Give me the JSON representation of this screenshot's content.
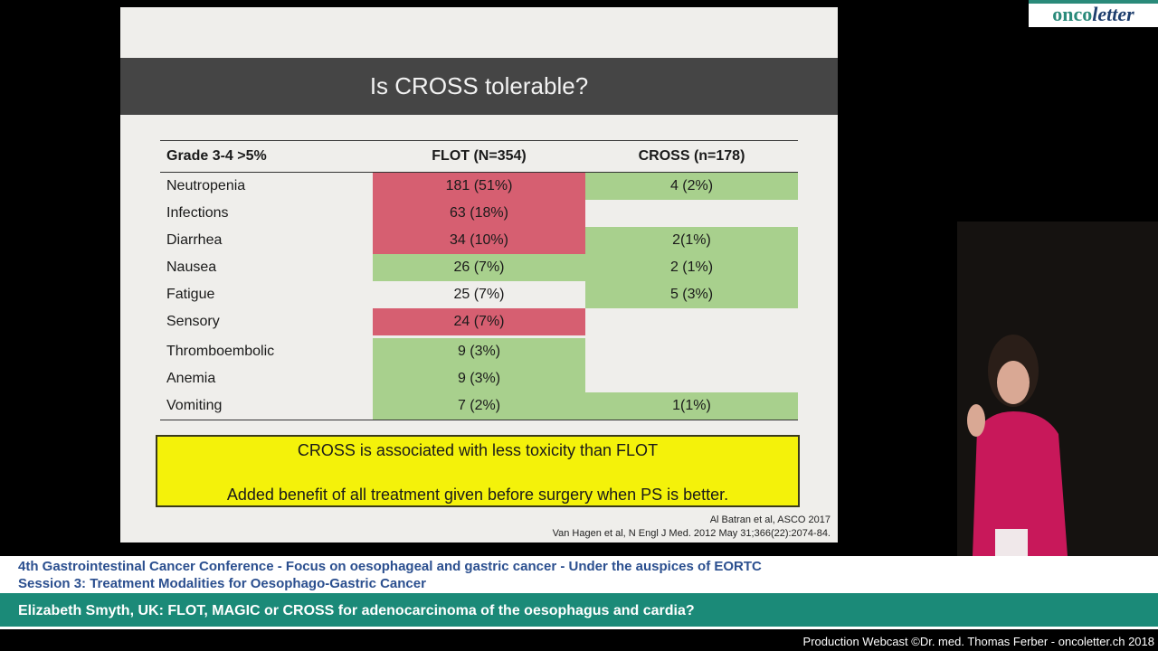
{
  "logo": {
    "part1": "onco",
    "part2": "letter"
  },
  "slide": {
    "title": "Is CROSS tolerable?",
    "table": {
      "headers": [
        "Grade 3-4 >5%",
        "FLOT (N=354)",
        "CROSS (n=178)"
      ],
      "rows": [
        {
          "label": "Neutropenia",
          "flot": "181 (51%)",
          "cross": "4 (2%)",
          "flot_color": "red",
          "cross_color": "green"
        },
        {
          "label": "Infections",
          "flot": "63 (18%)",
          "cross": "",
          "flot_color": "red",
          "cross_color": "none"
        },
        {
          "label": "Diarrhea",
          "flot": "34 (10%)",
          "cross": "2(1%)",
          "flot_color": "red",
          "cross_color": "green"
        },
        {
          "label": "Nausea",
          "flot": "26 (7%)",
          "cross": "2 (1%)",
          "flot_color": "green",
          "cross_color": "green"
        },
        {
          "label": "Fatigue",
          "flot": "25 (7%)",
          "cross": "5 (3%)",
          "flot_color": "none",
          "cross_color": "green"
        },
        {
          "label": "Sensory",
          "flot": "24 (7%)",
          "cross": "",
          "flot_color": "red",
          "cross_color": "none"
        },
        {
          "label": "Thromboembolic",
          "flot": "9 (3%)",
          "cross": "",
          "flot_color": "green",
          "cross_color": "none"
        },
        {
          "label": "Anemia",
          "flot": "9 (3%)",
          "cross": "",
          "flot_color": "green",
          "cross_color": "none"
        },
        {
          "label": "Vomiting",
          "flot": "7 (2%)",
          "cross": "1(1%)",
          "flot_color": "green",
          "cross_color": "green"
        }
      ]
    },
    "conclusion": [
      "CROSS is associated with less toxicity than FLOT",
      "Added benefit of all treatment given before surgery when PS is better."
    ],
    "references": [
      "Al Batran et al, ASCO 2017",
      "Van Hagen et al, N Engl J Med. 2012 May 31;366(22):2074-84."
    ]
  },
  "lower_third": {
    "conference": "4th Gastrointestinal Cancer Conference - Focus on oesophageal and gastric cancer - Under the auspices of EORTC",
    "session": "Session 3: Treatment Modalities for Oesophago-Gastric Cancer",
    "talk": "Elizabeth Smyth, UK: FLOT, MAGIC or CROSS for adenocarcinoma of the oesophagus and cardia?",
    "credit": "Production Webcast ©Dr. med. Thomas Ferber - oncoletter.ch 2018"
  },
  "colors": {
    "red": "#d65f71",
    "green": "#a8d08d",
    "yellow": "#f4f20a",
    "teal": "#1b8a78"
  }
}
